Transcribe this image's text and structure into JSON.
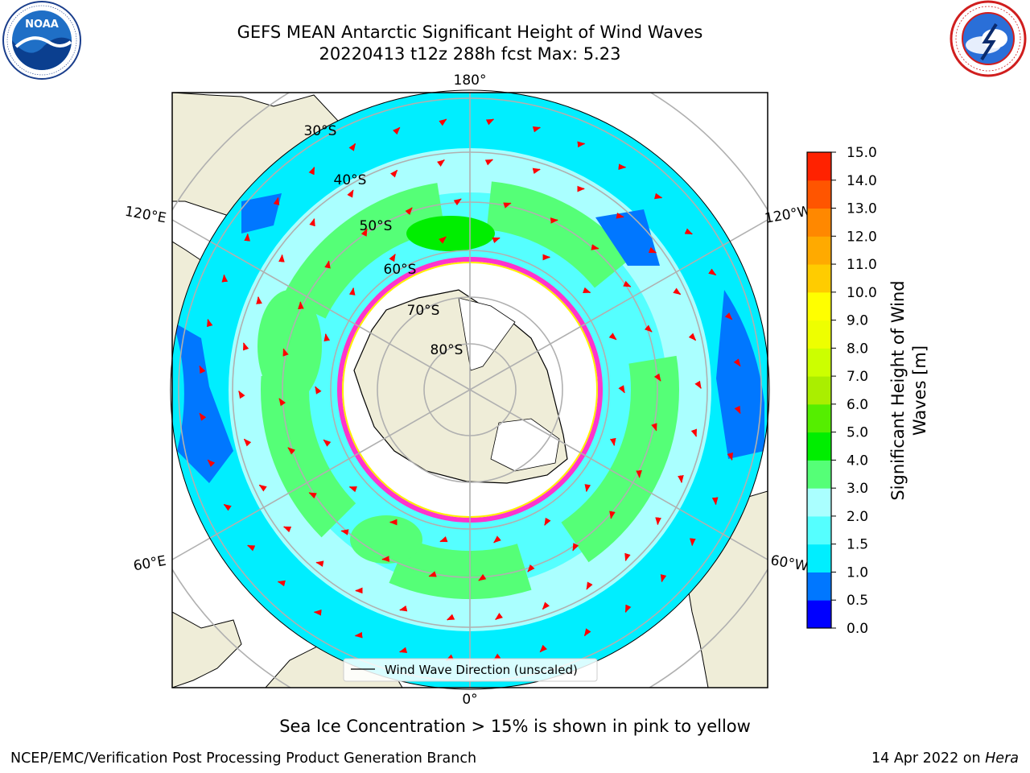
{
  "title": {
    "line1": "GEFS MEAN Antarctic Significant Height of Wind Waves",
    "line2": "20220413 t12z 288h fcst   Max: 5.23"
  },
  "map": {
    "projection": "south-polar-stereographic",
    "longitude_labels": [
      "180°",
      "120°E",
      "120°W",
      "60°E",
      "60°W",
      "0°"
    ],
    "latitude_labels": [
      "30°S",
      "40°S",
      "50°S",
      "60°S",
      "70°S",
      "80°S"
    ],
    "legend_entry": "Wind Wave Direction (unscaled)",
    "arrow_color": "#ff0000",
    "land_color": "#efedd8",
    "ocean_shades": [
      "#0000ff",
      "#0077ff",
      "#00eeff",
      "#55ffff",
      "#aaffff",
      "#55ff77",
      "#00ee00"
    ]
  },
  "colorbar": {
    "label": "Significant Height of Wind Waves [m]",
    "label_line1": "Significant Height of Wind",
    "label_line2": "Waves [m]",
    "ticks": [
      "15.0",
      "14.0",
      "13.0",
      "12.0",
      "11.0",
      "10.0",
      "9.0",
      "8.0",
      "7.0",
      "6.0",
      "5.0",
      "4.0",
      "3.0",
      "2.0",
      "1.5",
      "1.0",
      "0.5",
      "0.0"
    ],
    "colors_bottom_to_top": [
      "#0000ff",
      "#0077ff",
      "#00eeff",
      "#55ffff",
      "#aaffff",
      "#55ff77",
      "#00ee00",
      "#55ee00",
      "#aaee00",
      "#ccff00",
      "#eeff00",
      "#ffff00",
      "#ffcc00",
      "#ffaa00",
      "#ff8800",
      "#ff5500",
      "#ff2200"
    ]
  },
  "note": "Sea Ice Concentration > 15% is shown in pink to yellow",
  "footer": {
    "left": "NCEP/EMC/Verification Post Processing Product Generation Branch",
    "right_prefix": "14 Apr 2022 on ",
    "right_machine": "Hera"
  },
  "logos": {
    "left": {
      "text": "NOAA",
      "ring_text": "NATIONAL OCEANIC AND ATMOSPHERIC ADMINISTRATION · U.S. DEPARTMENT OF COMMERCE"
    },
    "right": {
      "ring_text": "NATIONAL WEATHER SERVICE"
    }
  }
}
